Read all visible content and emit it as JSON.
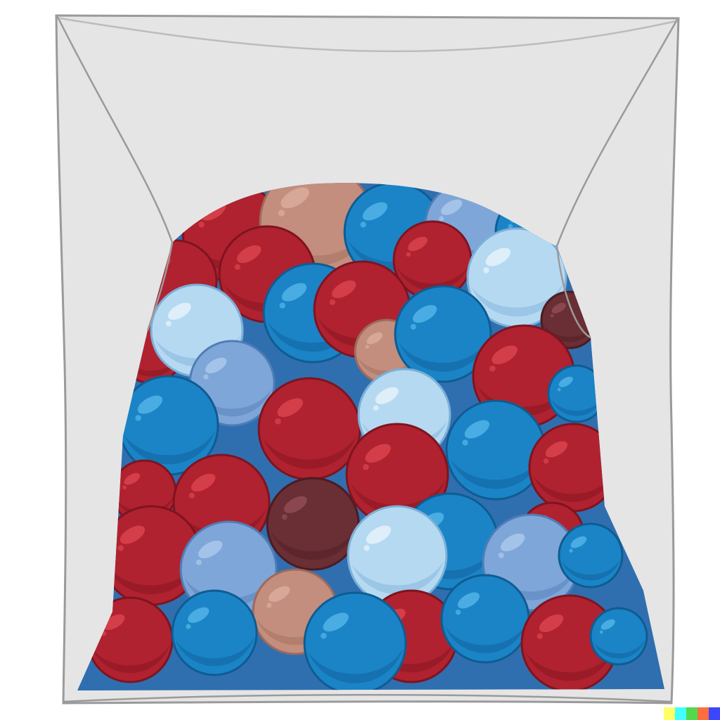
{
  "image": {
    "subject": "bag-of-balls",
    "colors": {
      "background": "#ffffff",
      "bag_fill": "#e6e5e5",
      "bag_outline": "#9a9a9a",
      "window_fill": "#2f6fb0"
    },
    "ball_palette": {
      "red": [
        "#b0222f",
        "#d8414b",
        "#7e1420"
      ],
      "blue": [
        "#1a84c6",
        "#4fb0e4",
        "#0f5c92"
      ],
      "light_blue": [
        "#b6d9f2",
        "#e2f1fb",
        "#7bb0d8"
      ],
      "periwinkle": [
        "#7ea6d8",
        "#a9c6ea",
        "#4f7db6"
      ],
      "maroon": [
        "#6a2e35",
        "#8e4a52",
        "#4b1c22"
      ],
      "tan": [
        "#c38e7e",
        "#d9aa9b",
        "#9d6a5c"
      ]
    },
    "ball_counts": {
      "red": 14,
      "blue": 13,
      "light_blue": 6,
      "periwinkle": 5,
      "maroon": 2,
      "tan": 3
    },
    "watermark_colors": [
      "#ffff66",
      "#42ffff",
      "#51da4c",
      "#ff6e3c",
      "#3c46ff"
    ]
  }
}
